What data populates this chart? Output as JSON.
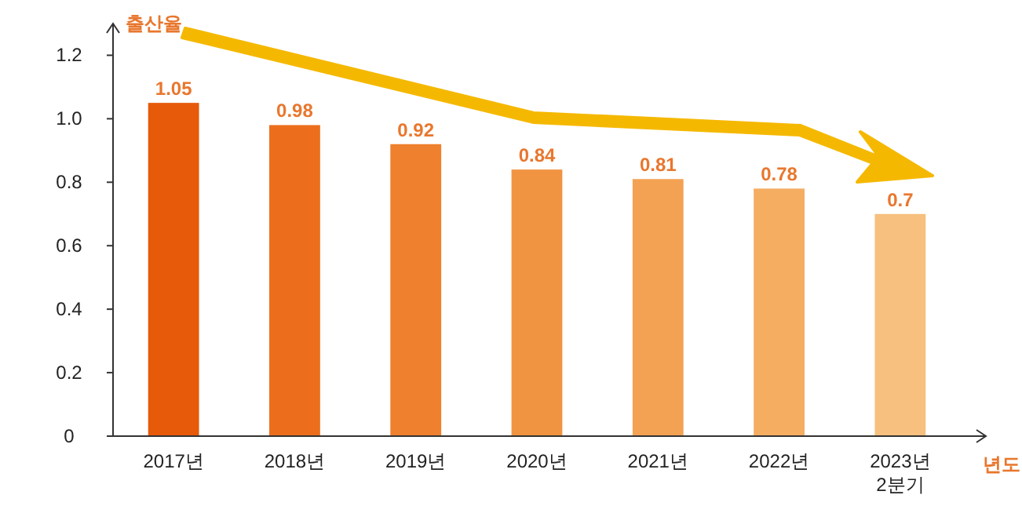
{
  "chart_data": {
    "type": "bar",
    "ylabel": "출산율",
    "xlabel": "년도",
    "categories": [
      "2017년",
      "2018년",
      "2019년",
      "2020년",
      "2021년",
      "2022년",
      "2023년\n2분기"
    ],
    "values": [
      1.05,
      0.98,
      0.92,
      0.84,
      0.81,
      0.78,
      0.7
    ],
    "colors": [
      "#e65a0a",
      "#ec6e1c",
      "#ef802e",
      "#f19442",
      "#f3a254",
      "#f5ad62",
      "#f7c07e"
    ],
    "ylim": [
      0,
      1.3
    ],
    "yticks": [
      0,
      0.2,
      0.4,
      0.6,
      0.8,
      {
        "value": 1,
        "label": "1.0"
      },
      1.2
    ],
    "data_labels": true
  }
}
